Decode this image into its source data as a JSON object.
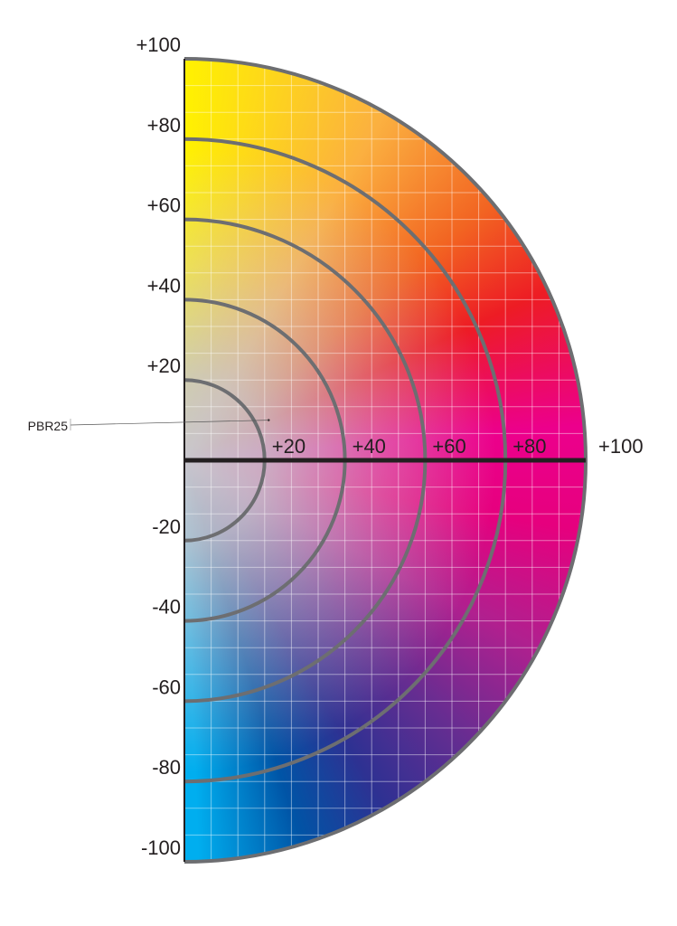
{
  "chart_data": {
    "type": "scatter",
    "xlim": [
      0,
      100
    ],
    "ylim": [
      -100,
      100
    ],
    "x_ticks": [
      "+20",
      "+40",
      "+60",
      "+80",
      "+100"
    ],
    "y_ticks": [
      "+100",
      "+80",
      "+60",
      "+40",
      "+20",
      "-20",
      "-40",
      "-60",
      "-80",
      "-100"
    ],
    "y_tick_values": [
      100,
      80,
      60,
      40,
      20,
      -20,
      -40,
      -60,
      -80,
      -100
    ],
    "x_tick_values": [
      20,
      40,
      60,
      80,
      100
    ],
    "rings": [
      20,
      40,
      60,
      80,
      100
    ],
    "grid": true,
    "points": [
      {
        "label": "PBR25",
        "x": 21,
        "y": 10
      }
    ],
    "colors": {
      "ring": "#6d6e71",
      "axis": "#231f20"
    }
  }
}
